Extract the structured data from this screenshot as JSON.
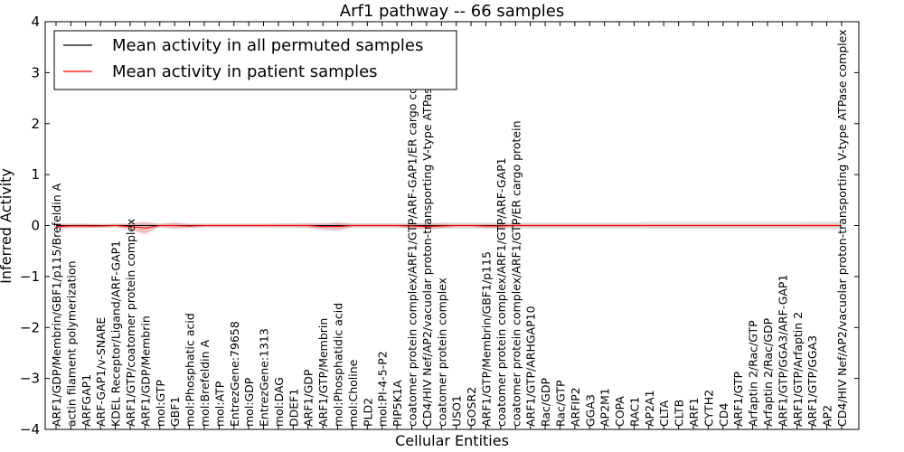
{
  "chart_data": {
    "type": "line",
    "title": "Arf1 pathway -- 66 samples",
    "xlabel": "Cellular Entities",
    "ylabel": "Inferred Activity",
    "ylim": [
      -4,
      4
    ],
    "yticks": [
      "4",
      "3",
      "2",
      "1",
      "0",
      "−1",
      "−2",
      "−3",
      "−4"
    ],
    "legend_position": "top-left",
    "grid": false,
    "categories": [
      "ARF1/GDP/Membrin/GBF1/p115/Brefeldin A",
      "actin filament polymerization",
      "ARFGAP1",
      "ARF-GAP1/v-SNARE",
      "KDEL Receptor/Ligand/ARF-GAP1",
      "ARF1/GTP/coatomer protein complex",
      "ARF1/GDP/Membrin",
      "mol:GTP",
      "GBF1",
      "mol:Phosphatic acid",
      "mol:Brefeldin A",
      "mol:ATP",
      "EntrezGene:79658",
      "mol:GDP",
      "EntrezGene:1313",
      "mol:DAG",
      "DDEF1",
      "ARF1/GDP",
      "ARF1/GTP/Membrin",
      "mol:Phosphatidic acid",
      "mol:Choline",
      "PLD2",
      "mol:PI-4-5-P2",
      "PIP5K1A",
      "coatomer protein complex/ARF1/GTP/ARF-GAP1/ER cargo complex",
      "CD4/HIV Nef/AP2/vacuolar proton-transporting V-type ATPase complex",
      "coatomer protein complex",
      "USO1",
      "GOSR2",
      "ARF1/GTP/Membrin/GBF1/p115",
      "coatomer protein complex/ARF1/GTP/ARF-GAP1",
      "coatomer protein complex/ARF1/GTP/ER cargo protein",
      "ARF1/GTP/ARHGAP10",
      "Rac/GDP",
      "Rac/GTP",
      "ARFIP2",
      "GGA3",
      "AP2M1",
      "COPA",
      "RAC1",
      "AP2A1",
      "CLTA",
      "CLTB",
      "ARF1",
      "CYTH2",
      "CD4",
      "ARF1/GTP",
      "Arfaptin 2/Rac/GTP",
      "Arfaptin 2/Rac/GDP",
      "ARF1/GTP/GGA3/ARF-GAP1",
      "ARF1/GTP/Arfaptin 2",
      "ARF1/GTP/GGA3",
      "AP2",
      "CD4/HIV Nef/AP2/vacuolar proton-transporting V-type ATPase complex"
    ],
    "series": [
      {
        "name": "Mean activity in all permuted samples",
        "color": "#000000",
        "values": [
          0,
          0,
          0,
          0,
          0,
          0,
          0,
          0,
          0,
          0,
          0,
          0,
          0,
          0,
          0,
          0,
          0,
          0,
          0,
          0,
          0,
          0,
          0,
          0,
          0,
          0,
          0,
          0,
          0,
          0,
          0,
          0,
          0,
          0,
          0,
          0,
          0,
          0,
          0,
          0,
          0,
          0,
          0,
          0,
          0,
          0,
          0,
          0,
          0,
          0,
          0,
          0,
          0,
          0
        ],
        "spread": [
          0.04,
          0.04,
          0.04,
          0.04,
          0.04,
          0.04,
          0.04,
          0.04,
          0.04,
          0.04,
          0.04,
          0.04,
          0.04,
          0.04,
          0.04,
          0.05,
          0.05,
          0.05,
          0.05,
          0.05,
          0.05,
          0.05,
          0.05,
          0.05,
          0.05,
          0.06,
          0.06,
          0.06,
          0.06,
          0.06,
          0.06,
          0.06,
          0.06,
          0.06,
          0.06,
          0.06,
          0.06,
          0.06,
          0.06,
          0.06,
          0.07,
          0.07,
          0.07,
          0.07,
          0.07,
          0.07,
          0.07,
          0.07,
          0.07,
          0.07,
          0.07,
          0.08,
          0.08,
          0.08
        ]
      },
      {
        "name": "Mean activity in patient samples",
        "color": "#ff0000",
        "values": [
          -0.02,
          -0.01,
          -0.01,
          -0.01,
          0,
          -0.02,
          -0.05,
          0,
          0,
          -0.01,
          0,
          0,
          0,
          0,
          0,
          0,
          0,
          0,
          -0.02,
          -0.02,
          0,
          0,
          0,
          0,
          -0.01,
          -0.02,
          -0.01,
          0,
          0,
          -0.01,
          -0.01,
          0,
          0,
          0,
          0,
          0,
          0,
          0,
          0,
          0,
          0,
          0,
          0,
          0,
          0,
          0,
          0,
          0,
          0,
          0,
          0,
          0,
          0,
          0
        ],
        "spread": [
          0.06,
          0.04,
          0.04,
          0.03,
          0.03,
          0.06,
          0.12,
          0.03,
          0.06,
          0.04,
          0.03,
          0.03,
          0.03,
          0.03,
          0.03,
          0.03,
          0.03,
          0.04,
          0.06,
          0.08,
          0.03,
          0.03,
          0.03,
          0.03,
          0.04,
          0.06,
          0.05,
          0.03,
          0.03,
          0.04,
          0.04,
          0.03,
          0.03,
          0.03,
          0.03,
          0.03,
          0.03,
          0.03,
          0.03,
          0.03,
          0.03,
          0.03,
          0.03,
          0.03,
          0.03,
          0.03,
          0.03,
          0.03,
          0.03,
          0.03,
          0.03,
          0.03,
          0.03,
          0.03
        ]
      }
    ]
  }
}
